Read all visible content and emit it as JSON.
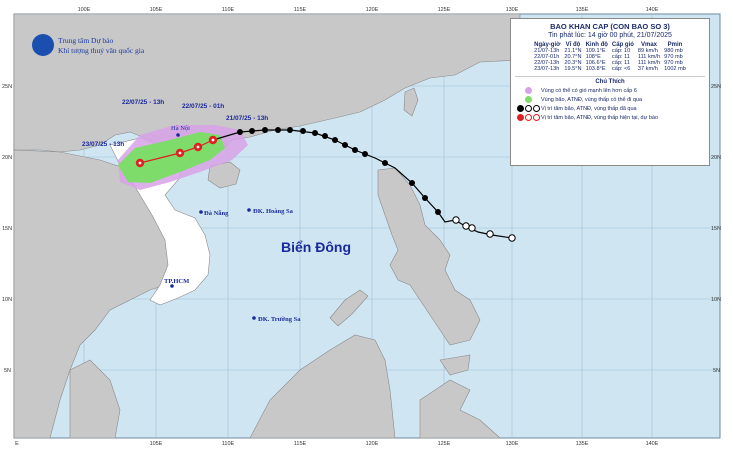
{
  "header": {
    "org_line1": "Trung tâm Dự báo",
    "org_line2": "Khí tượng thuỷ văn quốc gia"
  },
  "axes": {
    "top_lon": [
      "100E",
      "105E",
      "110E",
      "115E",
      "120E",
      "125E",
      "130E",
      "135E",
      "140E"
    ],
    "bottom_lon": [
      "E",
      "105E",
      "110E",
      "115E",
      "120E",
      "125E",
      "130E",
      "135E",
      "140E"
    ],
    "left_lat": [
      "25N",
      "20N",
      "15N",
      "10N",
      "5N"
    ],
    "right_lat": [
      "25N",
      "20N",
      "15N",
      "10N",
      "5N"
    ]
  },
  "labels": {
    "sea": "Biển Đông",
    "hanoi": "Hà Nội",
    "danang": "Đà Nẵng",
    "hoangsa": "ĐK. Hoàng Sa",
    "hcm": "TP.HCM",
    "truongsa": "ĐK. Trường Sa"
  },
  "track_labels": {
    "t1": "22/07/25 - 13h",
    "t2": "22/07/25 - 01h",
    "t3": "21/07/25 - 13h",
    "t4": "23/07/25 - 13h"
  },
  "bulletin": {
    "title": "BAO KHAN CAP (CON BAO SO 3)",
    "issued": "Tin phát lúc: 14 giờ 00 phút, 21/07/2025",
    "headers": [
      "Ngày-giờ",
      "Vĩ độ",
      "Kinh độ",
      "Cấp gió",
      "Vmax",
      "Pmin"
    ],
    "rows": [
      [
        "21/07-13h",
        "21.1°N",
        "109.1°E",
        "cấp: 10",
        "89 km/h",
        "980 mb"
      ],
      [
        "22/07-01h",
        "20.7°N",
        "108°E",
        "cấp: 11",
        "111 km/h",
        "970 mb"
      ],
      [
        "22/07-13h",
        "20.3°N",
        "106.6°E",
        "cấp: 11",
        "111 km/h",
        "970 mb"
      ],
      [
        "23/07-13h",
        "19.5°N",
        "103.8°E",
        "cấp: <6",
        "37 km/h",
        "1002 mb"
      ]
    ]
  },
  "legend": {
    "title": "Chú Thích",
    "items": [
      {
        "text": "Vùng có thể có gió mạnh lên hơn cấp 6",
        "color": "#d8a2e8"
      },
      {
        "text": "Vùng bão, ATNĐ, vùng thấp có thể đi qua",
        "color": "#7ddc6a"
      },
      {
        "text": "Vị trí tâm bão, ATNĐ, vùng thấp đã qua",
        "color": "#000000"
      },
      {
        "text": "Vị trí tâm bão, ATNĐ, vùng thấp hiện tại, dự báo",
        "color": "#e02020"
      }
    ]
  },
  "colors": {
    "sea": "#cfe6f2",
    "land": "#c8c8c8",
    "vietnam": "#ffffff",
    "grid": "#9fc0d6",
    "past_track": "#000000",
    "forecast": "#e02020",
    "zone_purple": "#d8a2e8",
    "zone_green": "#7ddc6a"
  }
}
